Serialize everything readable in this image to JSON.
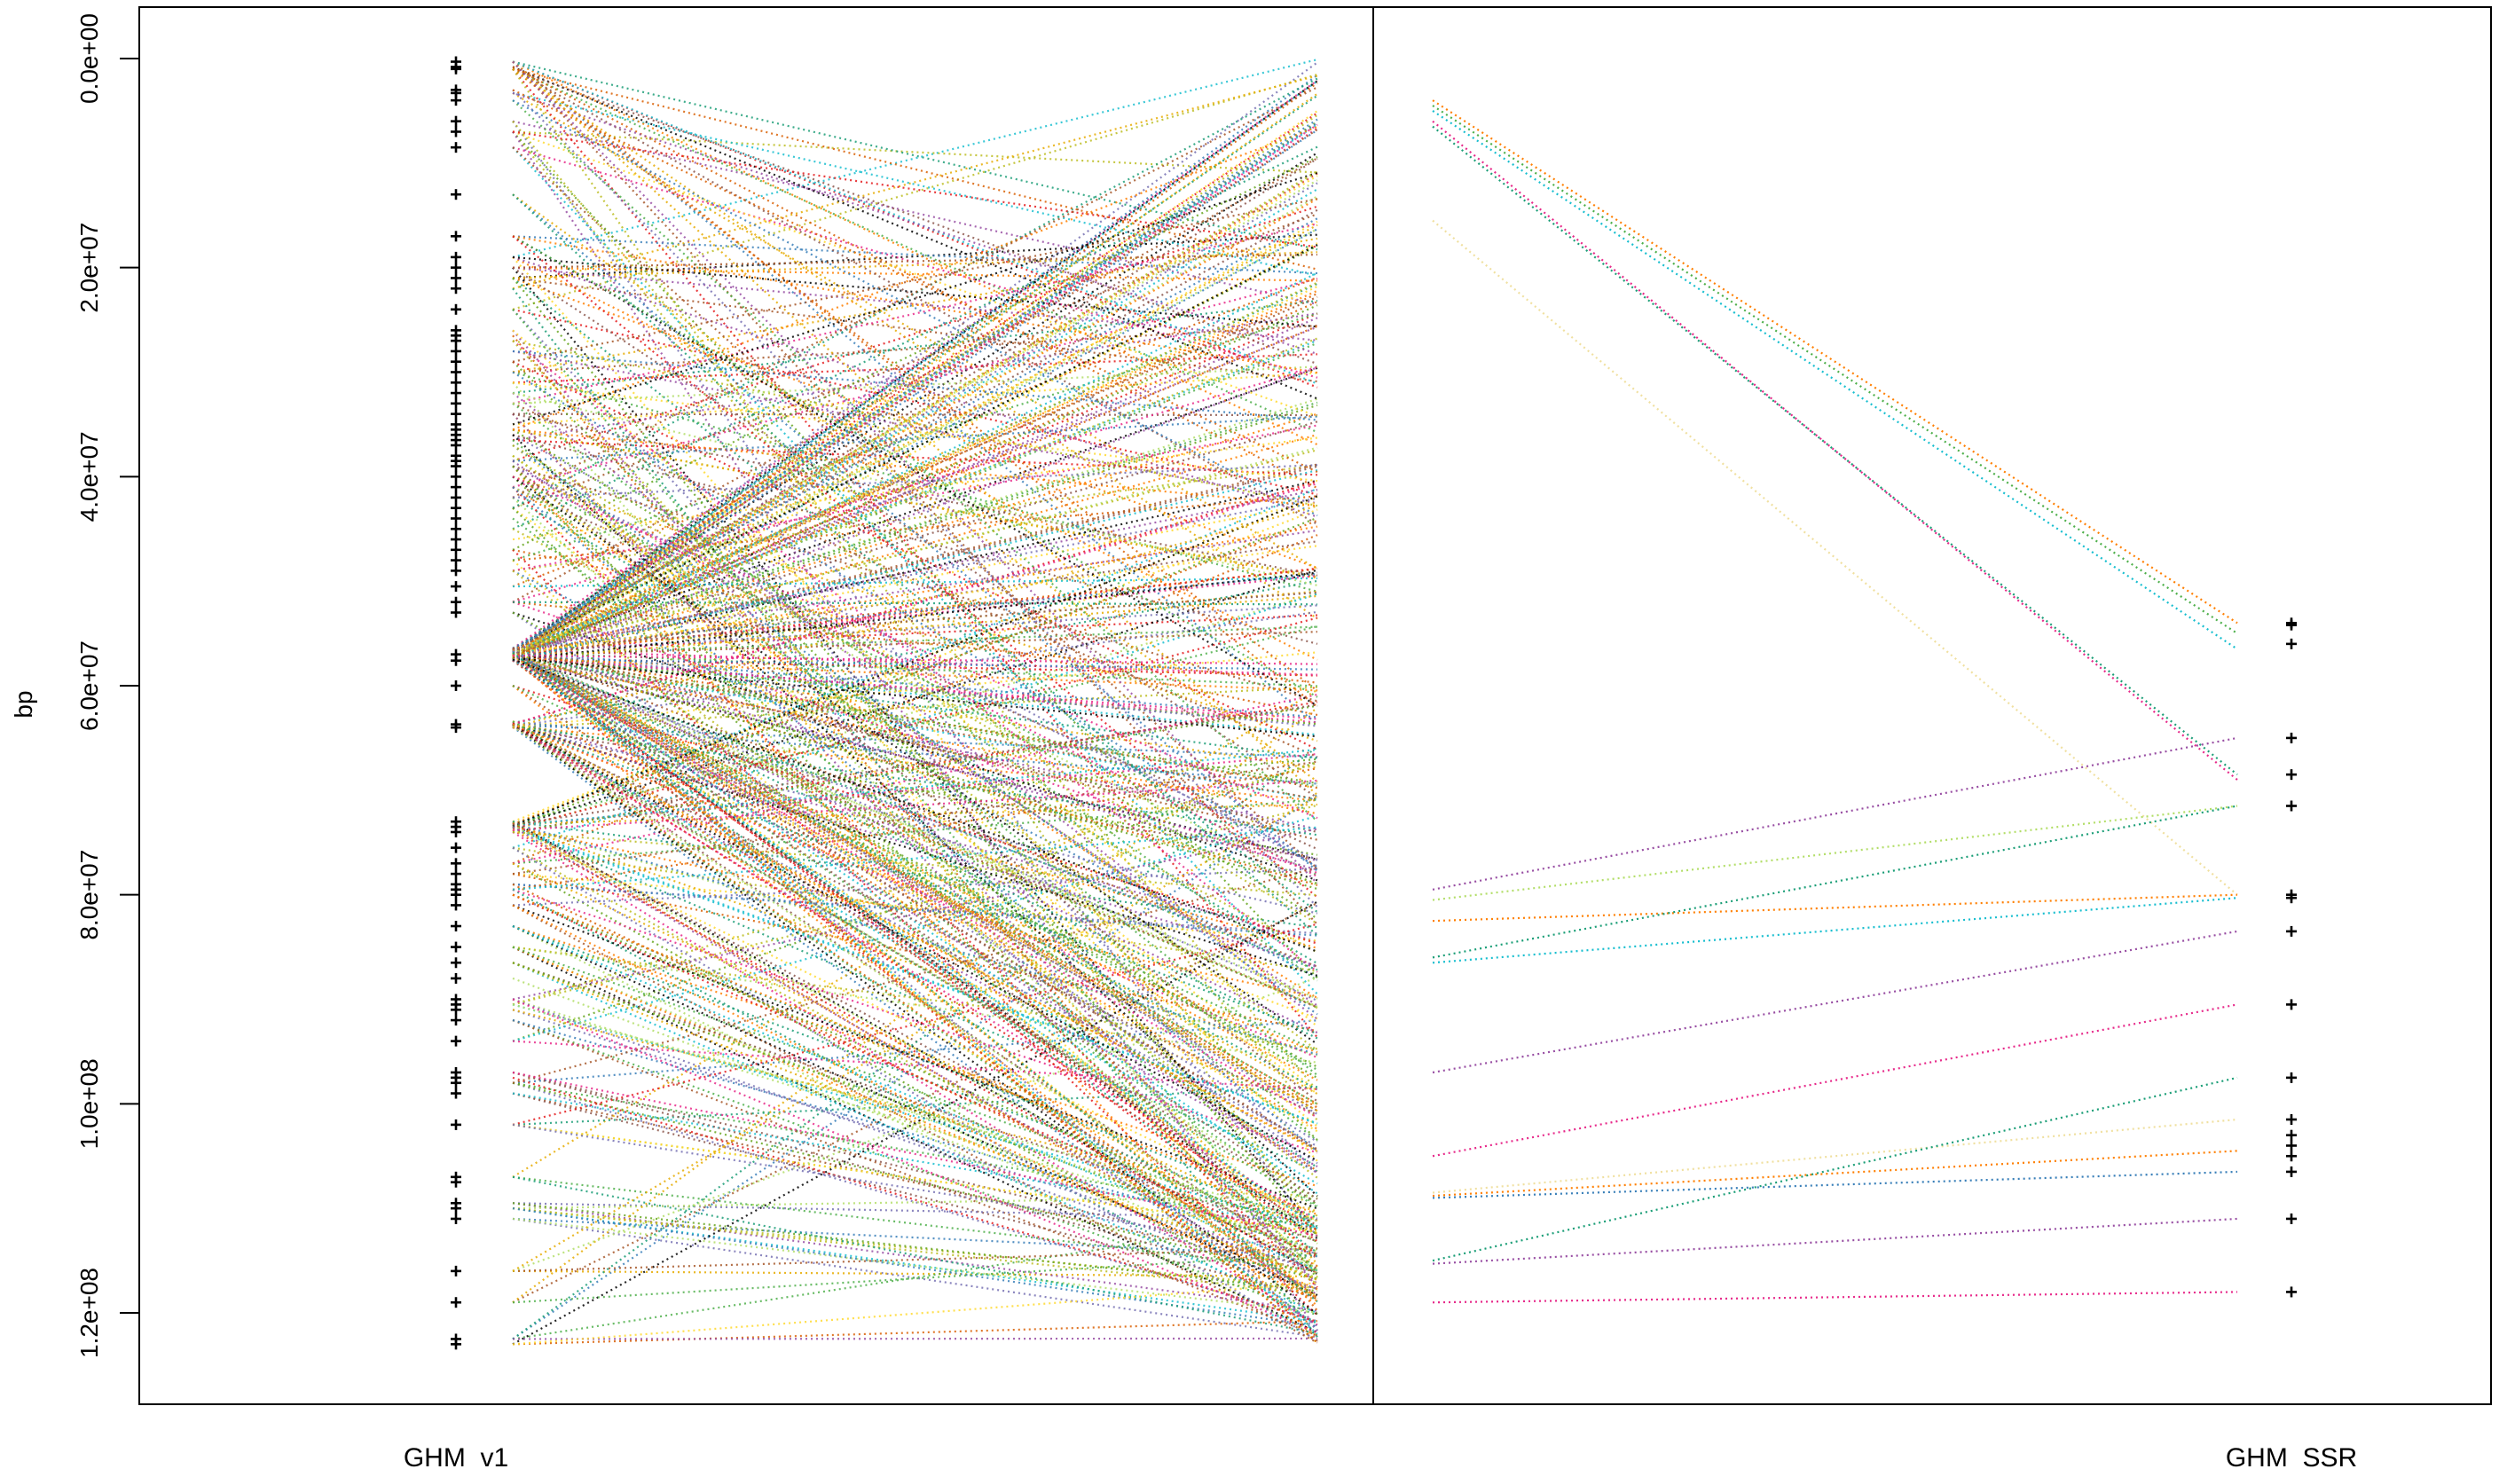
{
  "chart_data": {
    "type": "scatter",
    "title": "",
    "ylabel": "bp",
    "ylim": [
      0,
      128000000
    ],
    "y_reversed": true,
    "y_ticks": [
      0,
      20000000,
      40000000,
      60000000,
      80000000,
      100000000,
      120000000
    ],
    "y_tick_labels": [
      "0.0e+00",
      "2.0e+07",
      "4.0e+07",
      "6.0e+07",
      "8.0e+07",
      "1.0e+08",
      "1.2e+08"
    ],
    "maps": [
      {
        "name": "GHM_v1",
        "positions_bp": [
          300000,
          800000,
          1000000,
          3000000,
          3300000,
          4000000,
          6000000,
          7000000,
          8500000,
          13000000,
          17000000,
          19000000,
          20000000,
          21000000,
          22000000,
          24000000,
          26000000,
          26500000,
          27000000,
          28000000,
          29000000,
          30000000,
          31000000,
          32000000,
          33000000,
          34000000,
          35000000,
          35500000,
          36000000,
          36500000,
          37000000,
          38000000,
          38500000,
          39000000,
          40000000,
          41000000,
          42000000,
          43000000,
          44000000,
          45000000,
          46000000,
          47000000,
          48000000,
          49000000,
          50500000,
          52000000,
          53000000,
          57000000,
          57600000,
          60000000,
          63700000,
          64000000,
          73000000,
          73500000,
          74000000,
          75500000,
          77000000,
          78000000,
          79000000,
          79500000,
          80000000,
          81000000,
          83000000,
          85000000,
          86500000,
          88000000,
          90000000,
          90500000,
          91000000,
          92000000,
          94000000,
          97000000,
          97500000,
          98000000,
          99000000,
          102000000,
          107000000,
          107500000,
          109500000,
          110000000,
          111000000,
          116000000,
          119000000,
          122500000,
          123000000
        ]
      },
      {
        "name": "GHM_SSR",
        "positions_bp": [
          54000000,
          54200000,
          56000000,
          65000000,
          68500000,
          71500000,
          80000000,
          80300000,
          83500000,
          90500000,
          97500000,
          101500000,
          103000000,
          104000000,
          105000000,
          106500000,
          111000000,
          118000000
        ]
      }
    ],
    "connector_colors": [
      "#e41a1c",
      "#377eb8",
      "#4daf4a",
      "#984ea3",
      "#ff7f00",
      "#ffd92f",
      "#a65628",
      "#1b9e77",
      "#d95f02",
      "#7570b3",
      "#e7298a",
      "#66a61e",
      "#e6ab02",
      "#000000",
      "#17becf",
      "#bcbd22",
      "#8c564b",
      "#b3de69"
    ],
    "ssr_connections": [
      {
        "from": 4000000,
        "to": 54000000,
        "color": "#ff7f00"
      },
      {
        "from": 4500000,
        "to": 55000000,
        "color": "#4daf4a"
      },
      {
        "from": 5000000,
        "to": 56500000,
        "color": "#17becf"
      },
      {
        "from": 6000000,
        "to": 69000000,
        "color": "#e7298a"
      },
      {
        "from": 6500000,
        "to": 68500000,
        "color": "#1b9e77"
      },
      {
        "from": 15500000,
        "to": 80000000,
        "color": "#f0e0a0"
      },
      {
        "from": 79500000,
        "to": 65000000,
        "color": "#984ea3"
      },
      {
        "from": 80500000,
        "to": 71500000,
        "color": "#b3de69"
      },
      {
        "from": 82500000,
        "to": 80000000,
        "color": "#ff7f00"
      },
      {
        "from": 86000000,
        "to": 71500000,
        "color": "#1b9e77"
      },
      {
        "from": 86500000,
        "to": 80300000,
        "color": "#17becf"
      },
      {
        "from": 97000000,
        "to": 83500000,
        "color": "#984ea3"
      },
      {
        "from": 105000000,
        "to": 90500000,
        "color": "#e7298a"
      },
      {
        "from": 108500000,
        "to": 101500000,
        "color": "#f0e0a0"
      },
      {
        "from": 108800000,
        "to": 104500000,
        "color": "#ff7f00"
      },
      {
        "from": 109000000,
        "to": 106500000,
        "color": "#377eb8"
      },
      {
        "from": 115000000,
        "to": 97500000,
        "color": "#1b9e77"
      },
      {
        "from": 115300000,
        "to": 111000000,
        "color": "#984ea3"
      },
      {
        "from": 119000000,
        "to": 118000000,
        "color": "#e7298a"
      }
    ]
  }
}
